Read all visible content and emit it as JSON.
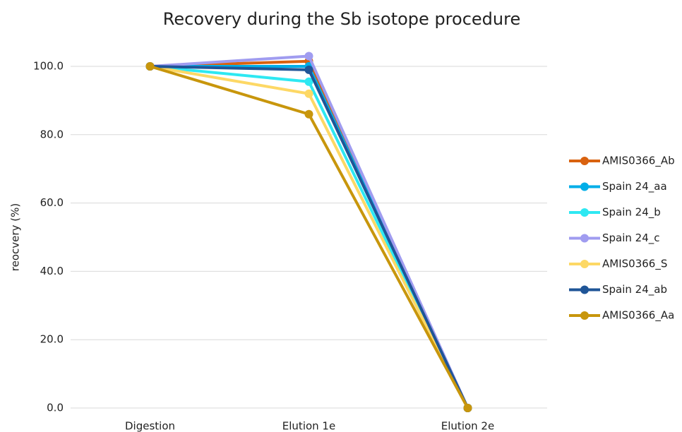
{
  "chart_data": {
    "type": "line",
    "title": "Recovery during the Sb isotope procedure",
    "y_label": "reocvery (%)",
    "categories": [
      "Digestion",
      "Elution 1e",
      "Elution 2e"
    ],
    "series": [
      {
        "name": "AMIS0366_Ab",
        "color": "#d9620f",
        "values": [
          100,
          101.5,
          0
        ]
      },
      {
        "name": "Spain 24_aa",
        "color": "#00aee8",
        "values": [
          100,
          100,
          0
        ]
      },
      {
        "name": "Spain 24_b",
        "color": "#2ee8f2",
        "values": [
          100,
          95.5,
          0
        ]
      },
      {
        "name": "Spain 24_c",
        "color": "#a09cf0",
        "values": [
          100,
          103,
          0
        ]
      },
      {
        "name": "AMIS0366_S",
        "color": "#fdd865",
        "values": [
          100,
          92,
          0
        ]
      },
      {
        "name": "Spain 24_ab",
        "color": "#1f5597",
        "values": [
          100,
          99,
          0
        ]
      },
      {
        "name": "AMIS0366_Aa",
        "color": "#c8960c",
        "values": [
          100,
          86,
          0
        ]
      }
    ],
    "ylim": [
      0,
      105
    ],
    "yticks": [
      {
        "value": 0,
        "label": "0.0"
      },
      {
        "value": 20,
        "label": "20.0"
      },
      {
        "value": 40,
        "label": "40.0"
      },
      {
        "value": 60,
        "label": "60.0"
      },
      {
        "value": 80,
        "label": "80.0"
      },
      {
        "value": 100,
        "label": "100.0"
      }
    ],
    "grid": true,
    "legend": "right"
  }
}
